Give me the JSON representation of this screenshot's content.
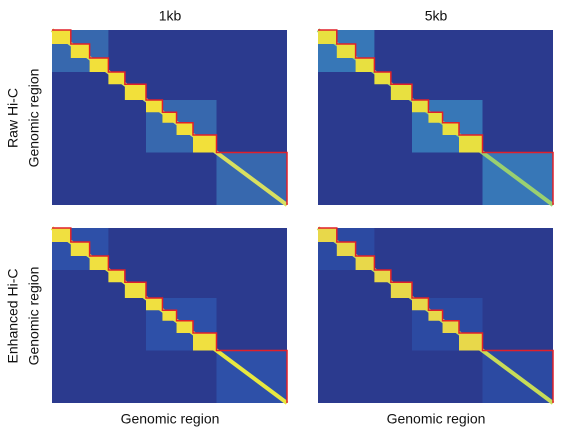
{
  "columns": [
    {
      "title": "1kb"
    },
    {
      "title": "5kb"
    }
  ],
  "rows": [
    {
      "label": "Raw Hi-C",
      "axis_label": "Genomic region"
    },
    {
      "label": "Enhanced Hi-C",
      "axis_label": "Genomic region"
    }
  ],
  "x_axis_label": "Genomic region"
}
